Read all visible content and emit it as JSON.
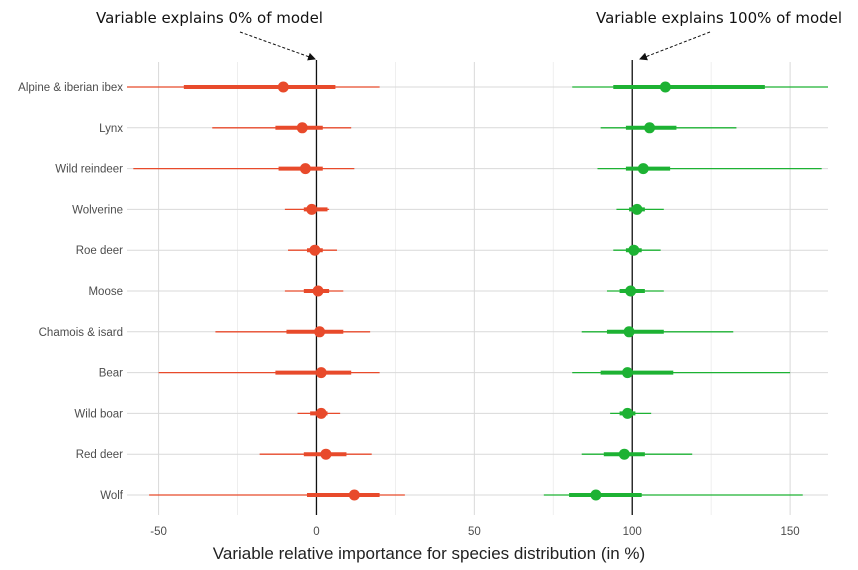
{
  "annotations": {
    "left": "Variable explains 0% of model",
    "right": "Variable explains 100% of model"
  },
  "chart_data": {
    "type": "forest",
    "xlabel": "Variable relative importance for species distribution (in %)",
    "xlim": [
      -60,
      162
    ],
    "xticks": [
      -50,
      0,
      50,
      100,
      150
    ],
    "reference_lines": [
      0,
      100
    ],
    "grid": true,
    "colors": {
      "left": "#e84a2b",
      "right": "#1db233"
    },
    "categories": [
      "Alpine & iberian ibex",
      "Lynx",
      "Wild reindeer",
      "Wolverine",
      "Roe deer",
      "Moose",
      "Chamois & isard",
      "Bear",
      "Wild boar",
      "Red deer",
      "Wolf"
    ],
    "series": [
      {
        "side": "left",
        "points": [
          {
            "label": "Alpine & iberian ibex",
            "estimate": -10.5,
            "inner": [
              -42,
              6
            ],
            "outer": [
              -60,
              20
            ]
          },
          {
            "label": "Lynx",
            "estimate": -4.5,
            "inner": [
              -13,
              2
            ],
            "outer": [
              -33,
              11
            ]
          },
          {
            "label": "Wild reindeer",
            "estimate": -3.5,
            "inner": [
              -12,
              2
            ],
            "outer": [
              -58,
              12
            ]
          },
          {
            "label": "Wolverine",
            "estimate": -1.5,
            "inner": [
              -4,
              3.5
            ],
            "outer": [
              -10,
              4
            ]
          },
          {
            "label": "Roe deer",
            "estimate": -0.5,
            "inner": [
              -3,
              2
            ],
            "outer": [
              -9,
              6.5
            ]
          },
          {
            "label": "Moose",
            "estimate": 0.5,
            "inner": [
              -4,
              4
            ],
            "outer": [
              -10,
              8.5
            ]
          },
          {
            "label": "Chamois & isard",
            "estimate": 1,
            "inner": [
              -9.5,
              8.5
            ],
            "outer": [
              -32,
              17
            ]
          },
          {
            "label": "Bear",
            "estimate": 1.5,
            "inner": [
              -13,
              11
            ],
            "outer": [
              -50,
              20
            ]
          },
          {
            "label": "Wild boar",
            "estimate": 1.5,
            "inner": [
              -2,
              3.5
            ],
            "outer": [
              -6,
              7.5
            ]
          },
          {
            "label": "Red deer",
            "estimate": 3,
            "inner": [
              -4,
              9.5
            ],
            "outer": [
              -18,
              17.5
            ]
          },
          {
            "label": "Wolf",
            "estimate": 12,
            "inner": [
              -3,
              20
            ],
            "outer": [
              -53,
              28
            ]
          }
        ]
      },
      {
        "side": "right",
        "points": [
          {
            "label": "Alpine & iberian ibex",
            "estimate": 110.5,
            "inner": [
              94,
              142
            ],
            "outer": [
              81,
              162
            ]
          },
          {
            "label": "Lynx",
            "estimate": 105.5,
            "inner": [
              98,
              114
            ],
            "outer": [
              90,
              133
            ]
          },
          {
            "label": "Wild reindeer",
            "estimate": 103.5,
            "inner": [
              98,
              112
            ],
            "outer": [
              89,
              160
            ]
          },
          {
            "label": "Wolverine",
            "estimate": 101.5,
            "inner": [
              99,
              104
            ],
            "outer": [
              95,
              110
            ]
          },
          {
            "label": "Roe deer",
            "estimate": 100.5,
            "inner": [
              98,
              103
            ],
            "outer": [
              94,
              109
            ]
          },
          {
            "label": "Moose",
            "estimate": 99.5,
            "inner": [
              96,
              104
            ],
            "outer": [
              92,
              110
            ]
          },
          {
            "label": "Chamois & isard",
            "estimate": 99,
            "inner": [
              92,
              110
            ],
            "outer": [
              84,
              132
            ]
          },
          {
            "label": "Bear",
            "estimate": 98.5,
            "inner": [
              90,
              113
            ],
            "outer": [
              81,
              150
            ]
          },
          {
            "label": "Wild boar",
            "estimate": 98.5,
            "inner": [
              96,
              101
            ],
            "outer": [
              93,
              106
            ]
          },
          {
            "label": "Red deer",
            "estimate": 97.5,
            "inner": [
              91,
              104
            ],
            "outer": [
              84,
              119
            ]
          },
          {
            "label": "Wolf",
            "estimate": 88.5,
            "inner": [
              80,
              103
            ],
            "outer": [
              72,
              154
            ]
          }
        ]
      }
    ]
  }
}
